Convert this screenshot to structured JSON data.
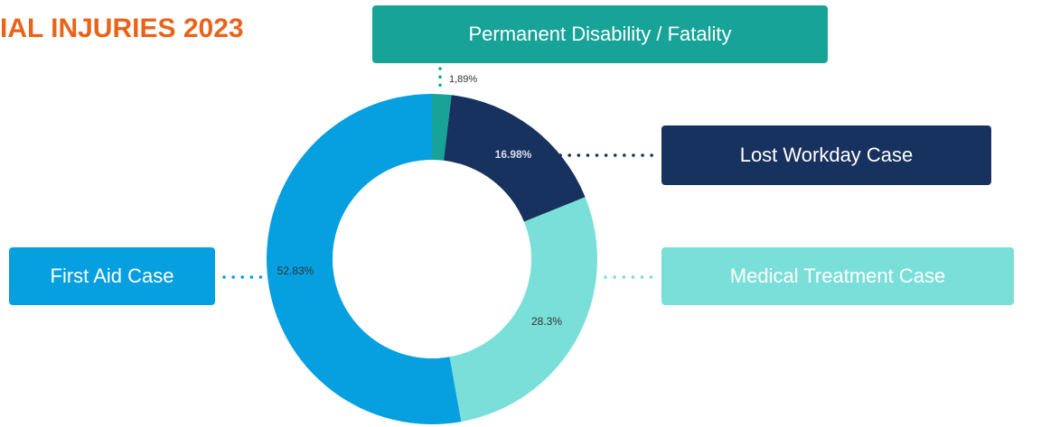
{
  "chart_data": {
    "type": "pie",
    "donut": true,
    "title": "IAL INJURIES 2023",
    "categories": [
      "Permanent Disability / Fatality",
      "Lost Workday Case",
      "Medical Treatment Case",
      "First Aid Case"
    ],
    "values": [
      1.89,
      16.98,
      28.3,
      52.83
    ],
    "value_labels": [
      "1,89%",
      "16.98%",
      "28.3%",
      "52.83%"
    ],
    "colors": [
      "#17a398",
      "#17325e",
      "#7adfd9",
      "#069fe0"
    ]
  }
}
